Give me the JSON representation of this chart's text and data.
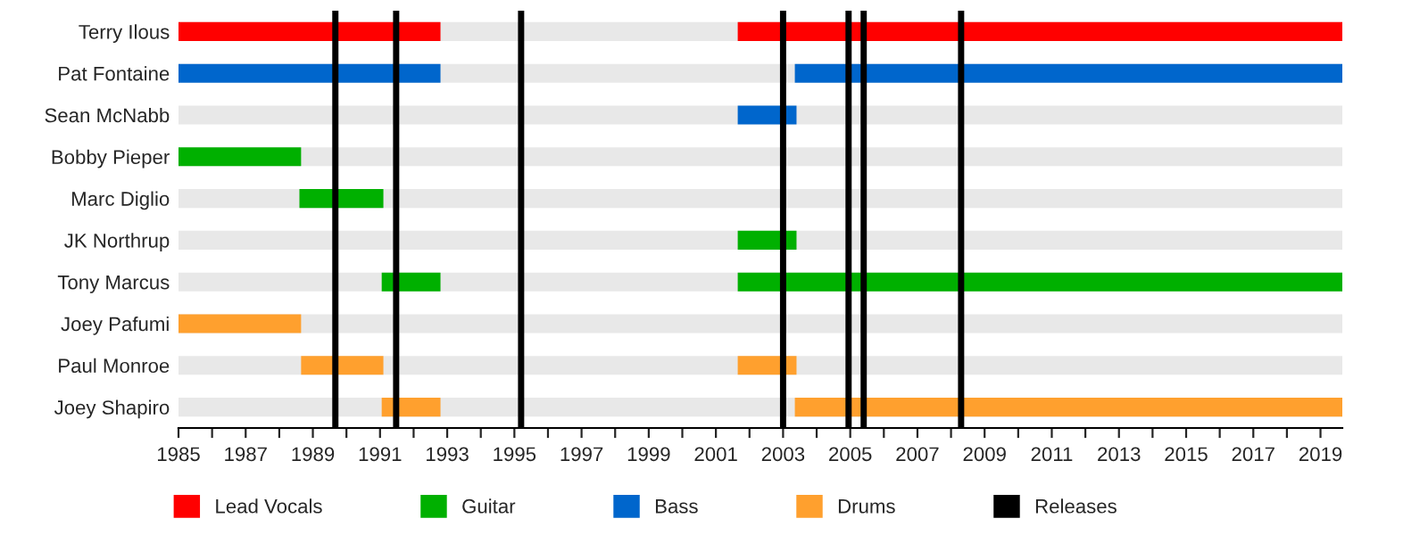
{
  "chart_data": {
    "type": "bar",
    "orientation": "horizontal",
    "categories": [
      "Terry Ilous",
      "Pat Fontaine",
      "Sean McNabb",
      "Bobby Pieper",
      "Marc Diglio",
      "JK Northrup",
      "Tony Marcus",
      "Joey Pafumi",
      "Paul Monroe",
      "Joey Shapiro"
    ],
    "series": [
      {
        "name": "Lead Vocals",
        "color": "#ff0000",
        "base": [
          1985,
          null,
          null,
          null,
          null,
          null,
          null,
          null,
          null,
          null
        ],
        "values": [
          7.8,
          null,
          null,
          null,
          null,
          null,
          null,
          null,
          null,
          null
        ]
      },
      {
        "color": "#ff0000",
        "base": [
          2001.65,
          null,
          null,
          null,
          null,
          null,
          null,
          null,
          null,
          null
        ],
        "values": [
          18.0,
          null,
          null,
          null,
          null,
          null,
          null,
          null,
          null,
          null
        ]
      },
      {
        "name": "Guitar",
        "color": "#00b000",
        "base": [
          null,
          null,
          null,
          1985,
          1988.6,
          2001.65,
          1991.05,
          null,
          null,
          null
        ],
        "values": [
          null,
          null,
          null,
          3.65,
          2.5,
          1.75,
          1.75,
          null,
          null,
          null
        ]
      },
      {
        "color": "#00b000",
        "base": [
          null,
          null,
          null,
          null,
          null,
          null,
          2001.65,
          null,
          null,
          null
        ],
        "values": [
          null,
          null,
          null,
          null,
          null,
          null,
          18.0,
          null,
          null,
          null
        ]
      },
      {
        "name": "Bass",
        "color": "#0066cc",
        "base": [
          null,
          1985,
          2001.65,
          null,
          null,
          null,
          null,
          null,
          null,
          null
        ],
        "values": [
          null,
          7.8,
          1.75,
          null,
          null,
          null,
          null,
          null,
          null,
          null
        ]
      },
      {
        "color": "#0066cc",
        "base": [
          null,
          2003.35,
          null,
          null,
          null,
          null,
          null,
          null,
          null,
          null
        ],
        "values": [
          null,
          16.3,
          null,
          null,
          null,
          null,
          null,
          null,
          null,
          null
        ]
      },
      {
        "name": "Drums",
        "color": "#ffa02e",
        "base": [
          null,
          null,
          null,
          null,
          null,
          null,
          null,
          1985,
          1988.65,
          1991.05
        ],
        "values": [
          null,
          null,
          null,
          null,
          null,
          null,
          null,
          3.65,
          2.45,
          1.75
        ]
      },
      {
        "color": "#ffa02e",
        "base": [
          null,
          null,
          null,
          null,
          null,
          null,
          null,
          null,
          2001.65,
          2003.35
        ],
        "values": [
          null,
          null,
          null,
          null,
          null,
          null,
          null,
          null,
          1.75,
          16.3
        ]
      }
    ],
    "ref_lines": [
      {
        "axis": "x",
        "value": 1989.67,
        "label": "Releases",
        "color": "#000000"
      },
      {
        "axis": "x",
        "value": 1991.48,
        "color": "#000000"
      },
      {
        "axis": "x",
        "value": 1995.2,
        "color": "#000000"
      },
      {
        "axis": "x",
        "value": 2003.0,
        "color": "#000000"
      },
      {
        "axis": "x",
        "value": 2004.95,
        "color": "#000000"
      },
      {
        "axis": "x",
        "value": 2005.4,
        "color": "#000000"
      },
      {
        "axis": "x",
        "value": 2008.3,
        "color": "#000000"
      }
    ],
    "xlim": [
      1985,
      2019.65
    ],
    "xticks": [
      1985,
      {
        "value": 1986,
        "label": null
      },
      1987,
      {
        "value": 1988,
        "label": null
      },
      1989,
      {
        "value": 1990,
        "label": null
      },
      1991,
      {
        "value": 1992,
        "label": null
      },
      1993,
      {
        "value": 1994,
        "label": null
      },
      1995,
      {
        "value": 1996,
        "label": null
      },
      1997,
      {
        "value": 1998,
        "label": null
      },
      1999,
      {
        "value": 2000,
        "label": null
      },
      2001,
      {
        "value": 2002,
        "label": null
      },
      2003,
      {
        "value": 2004,
        "label": null
      },
      2005,
      {
        "value": 2006,
        "label": null
      },
      2007,
      {
        "value": 2008,
        "label": null
      },
      2009,
      {
        "value": 2010,
        "label": null
      },
      2011,
      {
        "value": 2012,
        "label": null
      },
      2013,
      {
        "value": 2014,
        "label": null
      },
      2015,
      {
        "value": 2016,
        "label": null
      },
      2017,
      {
        "value": 2018,
        "label": null
      },
      2019
    ],
    "grid": false,
    "legend": "bottom"
  }
}
